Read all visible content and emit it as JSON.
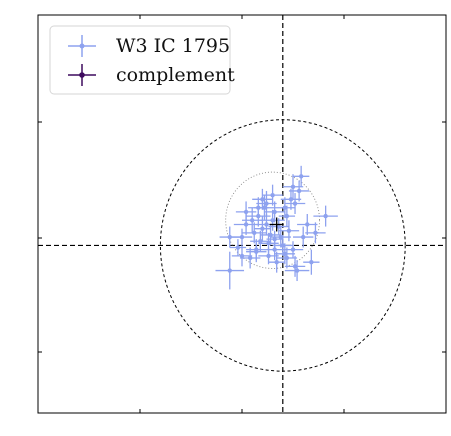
{
  "chart_data": {
    "type": "scatter",
    "title": "",
    "xlabel": "",
    "ylabel": "",
    "xlim": [
      -1.2,
      0.8
    ],
    "ylim": [
      -0.8,
      1.1
    ],
    "grid": false,
    "legend_position": "top-left",
    "reference_lines": {
      "x": 0,
      "y": 0
    },
    "circles": [
      {
        "name": "outer",
        "cx": 0,
        "cy": 0,
        "r": 0.6,
        "style": "dashed",
        "color": "#000000"
      },
      {
        "name": "inner",
        "cx": -0.05,
        "cy": 0.12,
        "r": 0.23,
        "style": "dotted",
        "color": "#888888"
      }
    ],
    "centroid": {
      "x": -0.03,
      "y": 0.1,
      "color": "#000000"
    },
    "series": [
      {
        "name": "W3 IC 1795",
        "color": "#8ea2ef",
        "points": [
          {
            "x": -0.08,
            "y": 0.1,
            "xerr": 0.05,
            "yerr": 0.05
          },
          {
            "x": -0.05,
            "y": 0.12,
            "xerr": 0.06,
            "yerr": 0.05
          },
          {
            "x": -0.1,
            "y": 0.08,
            "xerr": 0.04,
            "yerr": 0.06
          },
          {
            "x": -0.02,
            "y": 0.09,
            "xerr": 0.05,
            "yerr": 0.04
          },
          {
            "x": -0.12,
            "y": 0.14,
            "xerr": 0.06,
            "yerr": 0.05
          },
          {
            "x": -0.06,
            "y": 0.05,
            "xerr": 0.05,
            "yerr": 0.05
          },
          {
            "x": 0.02,
            "y": 0.14,
            "xerr": 0.04,
            "yerr": 0.05
          },
          {
            "x": -0.09,
            "y": 0.18,
            "xerr": 0.05,
            "yerr": 0.06
          },
          {
            "x": -0.04,
            "y": 0.03,
            "xerr": 0.04,
            "yerr": 0.04
          },
          {
            "x": 0.04,
            "y": 0.22,
            "xerr": 0.05,
            "yerr": 0.05
          },
          {
            "x": 0.06,
            "y": 0.2,
            "xerr": 0.05,
            "yerr": 0.05
          },
          {
            "x": 0.08,
            "y": 0.26,
            "xerr": 0.05,
            "yerr": 0.05
          },
          {
            "x": -0.14,
            "y": 0.06,
            "xerr": 0.06,
            "yerr": 0.05
          },
          {
            "x": -0.18,
            "y": 0.1,
            "xerr": 0.06,
            "yerr": 0.05
          },
          {
            "x": -0.2,
            "y": 0.04,
            "xerr": 0.05,
            "yerr": 0.04
          },
          {
            "x": -0.15,
            "y": 0.12,
            "xerr": 0.05,
            "yerr": 0.06
          },
          {
            "x": -0.13,
            "y": -0.02,
            "xerr": 0.05,
            "yerr": 0.05
          },
          {
            "x": -0.07,
            "y": -0.05,
            "xerr": 0.05,
            "yerr": 0.04
          },
          {
            "x": 0.01,
            "y": -0.04,
            "xerr": 0.05,
            "yerr": 0.05
          },
          {
            "x": -0.03,
            "y": -0.08,
            "xerr": 0.04,
            "yerr": 0.05
          },
          {
            "x": 0.05,
            "y": -0.02,
            "xerr": 0.05,
            "yerr": 0.04
          },
          {
            "x": 0.1,
            "y": 0.04,
            "xerr": 0.05,
            "yerr": 0.05
          },
          {
            "x": 0.14,
            "y": -0.08,
            "xerr": 0.04,
            "yerr": 0.06
          },
          {
            "x": 0.07,
            "y": -0.12,
            "xerr": 0.06,
            "yerr": 0.05
          },
          {
            "x": -0.16,
            "y": -0.06,
            "xerr": 0.05,
            "yerr": 0.05
          },
          {
            "x": -0.22,
            "y": -0.01,
            "xerr": 0.04,
            "yerr": 0.04
          },
          {
            "x": -0.26,
            "y": 0.04,
            "xerr": 0.05,
            "yerr": 0.05
          },
          {
            "x": -0.11,
            "y": 0.02,
            "xerr": 0.05,
            "yerr": 0.05
          },
          {
            "x": -0.01,
            "y": 0.04,
            "xerr": 0.05,
            "yerr": 0.05
          },
          {
            "x": 0.03,
            "y": 0.07,
            "xerr": 0.05,
            "yerr": 0.05
          },
          {
            "x": -0.08,
            "y": 0.2,
            "xerr": 0.05,
            "yerr": 0.06
          },
          {
            "x": -0.04,
            "y": 0.16,
            "xerr": 0.05,
            "yerr": 0.05
          },
          {
            "x": 0.05,
            "y": 0.28,
            "xerr": 0.05,
            "yerr": 0.06
          },
          {
            "x": 0.09,
            "y": 0.33,
            "xerr": 0.04,
            "yerr": 0.05
          },
          {
            "x": 0.21,
            "y": 0.14,
            "xerr": 0.06,
            "yerr": 0.05
          },
          {
            "x": -0.26,
            "y": -0.12,
            "xerr": 0.07,
            "yerr": 0.09
          },
          {
            "x": -0.2,
            "y": -0.05,
            "xerr": 0.05,
            "yerr": 0.05
          },
          {
            "x": -0.13,
            "y": -0.03,
            "xerr": 0.05,
            "yerr": 0.05
          },
          {
            "x": -0.04,
            "y": -0.02,
            "xerr": 0.05,
            "yerr": 0.05
          },
          {
            "x": 0.02,
            "y": -0.06,
            "xerr": 0.05,
            "yerr": 0.05
          },
          {
            "x": 0.06,
            "y": -0.1,
            "xerr": 0.05,
            "yerr": 0.05
          },
          {
            "x": -0.1,
            "y": 0.22,
            "xerr": 0.05,
            "yerr": 0.05
          },
          {
            "x": -0.05,
            "y": 0.24,
            "xerr": 0.05,
            "yerr": 0.05
          },
          {
            "x": 0.01,
            "y": 0.18,
            "xerr": 0.05,
            "yerr": 0.05
          },
          {
            "x": 0.12,
            "y": 0.1,
            "xerr": 0.05,
            "yerr": 0.05
          },
          {
            "x": 0.16,
            "y": 0.06,
            "xerr": 0.05,
            "yerr": 0.05
          },
          {
            "x": -0.18,
            "y": 0.16,
            "xerr": 0.05,
            "yerr": 0.05
          },
          {
            "x": -0.12,
            "y": 0.18,
            "xerr": 0.05,
            "yerr": 0.05
          },
          {
            "x": -0.07,
            "y": 0.01,
            "xerr": 0.05,
            "yerr": 0.05
          },
          {
            "x": 0.0,
            "y": 0.0,
            "xerr": 0.05,
            "yerr": 0.05
          }
        ]
      },
      {
        "name": "complement",
        "color": "#3d0a5e",
        "points": []
      }
    ]
  }
}
